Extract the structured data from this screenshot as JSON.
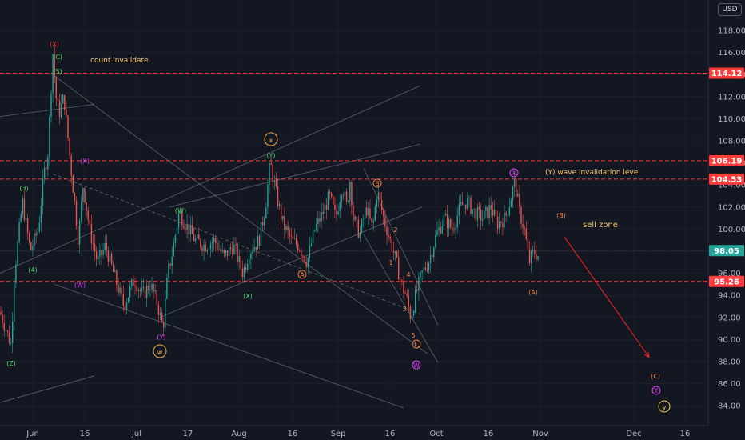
{
  "currency_badge": "USD",
  "chart_data": {
    "type": "candlestick",
    "ylim": [
      83,
      120
    ],
    "y_ticks": [
      84,
      86,
      88,
      90,
      92,
      94,
      96,
      98,
      100,
      102,
      104,
      106,
      108,
      110,
      112,
      114,
      116,
      118
    ],
    "y_tick_labels": [
      "84.00",
      "86.00",
      "88.00",
      "90.00",
      "92.00",
      "94.00",
      "96.00",
      "98.00",
      "100.00",
      "102.00",
      "104.00",
      "106.00",
      "108.00",
      "110.00",
      "112.00",
      "114.00",
      "116.00",
      "118.00"
    ],
    "x_ticks": [
      "Jun",
      "16",
      "Jul",
      "17",
      "Aug",
      "16",
      "Sep",
      "16",
      "Oct",
      "16",
      "Nov",
      "Dec",
      "16"
    ],
    "colors": {
      "up": "#26a69a",
      "down": "#ef5350",
      "background": "#131722",
      "level": "#ff2828"
    },
    "levels": [
      {
        "label": "114.12",
        "value": 114.12,
        "color": "#ff3b3b"
      },
      {
        "label": "106.19",
        "value": 106.19,
        "color": "#ff3b3b"
      },
      {
        "label": "104.53",
        "value": 104.53,
        "color": "#ff3b3b"
      },
      {
        "label": "98.05",
        "value": 98.05,
        "color": "#26a69a"
      },
      {
        "label": "95.26",
        "value": 95.26,
        "color": "#ff3b3b"
      }
    ],
    "annotations": [
      {
        "text": "count invalidate"
      },
      {
        "text": "(Y) wave invalidation level"
      },
      {
        "text": "sell zone"
      }
    ],
    "wave_labels": [
      {
        "text": "(X)",
        "color": "#ff3030"
      },
      {
        "text": "(C)",
        "color": "#4cd964"
      },
      {
        "text": "(5)",
        "color": "#4cd964"
      },
      {
        "text": "(3)",
        "color": "#4cd964"
      },
      {
        "text": "(4)",
        "color": "#4cd964"
      },
      {
        "text": "(Z)",
        "color": "#4cd964"
      },
      {
        "text": "(X)",
        "color": "#e040fb"
      },
      {
        "text": "(W)",
        "color": "#e040fb"
      },
      {
        "text": "(W)",
        "color": "#4cd964"
      },
      {
        "text": "(Y)",
        "color": "#e040fb"
      },
      {
        "text": "(X)",
        "color": "#4cd964"
      },
      {
        "text": "(Y)",
        "color": "#4cd964"
      },
      {
        "text": "w",
        "color": "#f5a742"
      },
      {
        "text": "x",
        "color": "#f5a742"
      },
      {
        "text": "A",
        "color": "#f08040"
      },
      {
        "text": "B",
        "color": "#f08040"
      },
      {
        "text": "C",
        "color": "#f08040"
      },
      {
        "text": "1",
        "color": "#f08040"
      },
      {
        "text": "2",
        "color": "#f08040"
      },
      {
        "text": "3",
        "color": "#f08040"
      },
      {
        "text": "4",
        "color": "#f08040"
      },
      {
        "text": "5",
        "color": "#f08040"
      },
      {
        "text": "W",
        "color": "#e040fb"
      },
      {
        "text": "X",
        "color": "#e040fb"
      },
      {
        "text": "(A)",
        "color": "#f08040"
      },
      {
        "text": "(B)",
        "color": "#f08040"
      },
      {
        "text": "(C)",
        "color": "#f08040"
      },
      {
        "text": "Y",
        "color": "#e040fb"
      },
      {
        "text": "y",
        "color": "#f5d742"
      }
    ],
    "price_path": [
      [
        0,
        92.5
      ],
      [
        14,
        89.5
      ],
      [
        18,
        96
      ],
      [
        28,
        102.5
      ],
      [
        38,
        98
      ],
      [
        48,
        100
      ],
      [
        55,
        105
      ],
      [
        60,
        107
      ],
      [
        66,
        116
      ],
      [
        70,
        112
      ],
      [
        74,
        110.5
      ],
      [
        80,
        112
      ],
      [
        88,
        106
      ],
      [
        94,
        102
      ],
      [
        98,
        99
      ],
      [
        104,
        104
      ],
      [
        112,
        100
      ],
      [
        122,
        97
      ],
      [
        132,
        98.5
      ],
      [
        142,
        96
      ],
      [
        155,
        93
      ],
      [
        168,
        95.5
      ],
      [
        178,
        94
      ],
      [
        188,
        95
      ],
      [
        196,
        93.5
      ],
      [
        204,
        91
      ],
      [
        210,
        96
      ],
      [
        216,
        98
      ],
      [
        224,
        101.5
      ],
      [
        232,
        100.5
      ],
      [
        244,
        99
      ],
      [
        256,
        98.5
      ],
      [
        268,
        99
      ],
      [
        280,
        97.5
      ],
      [
        292,
        98.5
      ],
      [
        304,
        96
      ],
      [
        312,
        98
      ],
      [
        324,
        99
      ],
      [
        332,
        102
      ],
      [
        338,
        106
      ],
      [
        346,
        103
      ],
      [
        354,
        100.5
      ],
      [
        364,
        99
      ],
      [
        374,
        98.5
      ],
      [
        384,
        97
      ],
      [
        394,
        100
      ],
      [
        404,
        101.5
      ],
      [
        412,
        103
      ],
      [
        420,
        101
      ],
      [
        428,
        104
      ],
      [
        434,
        102
      ],
      [
        438,
        104.5
      ],
      [
        442,
        101
      ],
      [
        450,
        99.5
      ],
      [
        458,
        102
      ],
      [
        466,
        100
      ],
      [
        472,
        103.5
      ],
      [
        480,
        101
      ],
      [
        488,
        99
      ],
      [
        496,
        97
      ],
      [
        502,
        95
      ],
      [
        508,
        94
      ],
      [
        514,
        92
      ],
      [
        520,
        94
      ],
      [
        528,
        96
      ],
      [
        536,
        97
      ],
      [
        546,
        99.5
      ],
      [
        556,
        101
      ],
      [
        566,
        100
      ],
      [
        576,
        102
      ],
      [
        584,
        102.5
      ],
      [
        594,
        101.5
      ],
      [
        604,
        101
      ],
      [
        614,
        102
      ],
      [
        622,
        100.5
      ],
      [
        632,
        101
      ],
      [
        638,
        102.5
      ],
      [
        644,
        104.3
      ],
      [
        650,
        101.5
      ],
      [
        656,
        100
      ],
      [
        662,
        97
      ],
      [
        668,
        98
      ],
      [
        674,
        97.5
      ]
    ],
    "channel_lines": [
      [
        [
          0,
          110.2
        ],
        [
          118,
          111.3
        ]
      ],
      [
        [
          0,
          96
        ],
        [
          526,
          113
        ]
      ],
      [
        [
          66,
          114
        ],
        [
          535,
          88.7
        ]
      ],
      [
        [
          68,
          95
        ],
        [
          505,
          83.8
        ]
      ],
      [
        [
          0,
          84.3
        ],
        [
          118,
          86.7
        ]
      ],
      [
        [
          200,
          92
        ],
        [
          528,
          102
        ]
      ],
      [
        [
          212,
          102
        ],
        [
          526,
          107.7
        ]
      ],
      [
        [
          455,
          105.5
        ],
        [
          548,
          91.3
        ]
      ],
      [
        [
          455,
          99.5
        ],
        [
          548,
          87.9
        ]
      ]
    ],
    "dashed_lines": [
      [
        [
          66,
          105
        ],
        [
          530,
          92.2
        ]
      ]
    ],
    "arrow": [
      [
        706,
        99.3
      ],
      [
        812,
        88.4
      ]
    ]
  }
}
